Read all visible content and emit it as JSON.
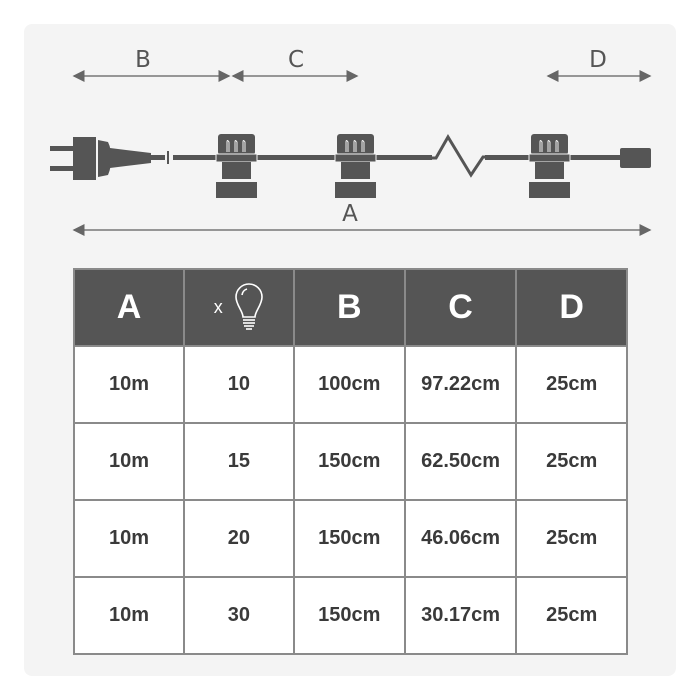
{
  "diagram": {
    "labels": {
      "a": "A",
      "b": "B",
      "c": "C",
      "d": "D"
    },
    "colors": {
      "drawing": "#555555",
      "arrow": "#666666"
    }
  },
  "table": {
    "headers": [
      "A",
      "x",
      "B",
      "C",
      "D"
    ],
    "header_icon": "light-bulb-icon",
    "rows": [
      [
        "10m",
        "10",
        "100cm",
        "97.22cm",
        "25cm"
      ],
      [
        "10m",
        "15",
        "150cm",
        "62.50cm",
        "25cm"
      ],
      [
        "10m",
        "20",
        "150cm",
        "46.06cm",
        "25cm"
      ],
      [
        "10m",
        "30",
        "150cm",
        "30.17cm",
        "25cm"
      ]
    ],
    "colors": {
      "header_bg": "#555555",
      "border": "#8a8a8a"
    }
  }
}
